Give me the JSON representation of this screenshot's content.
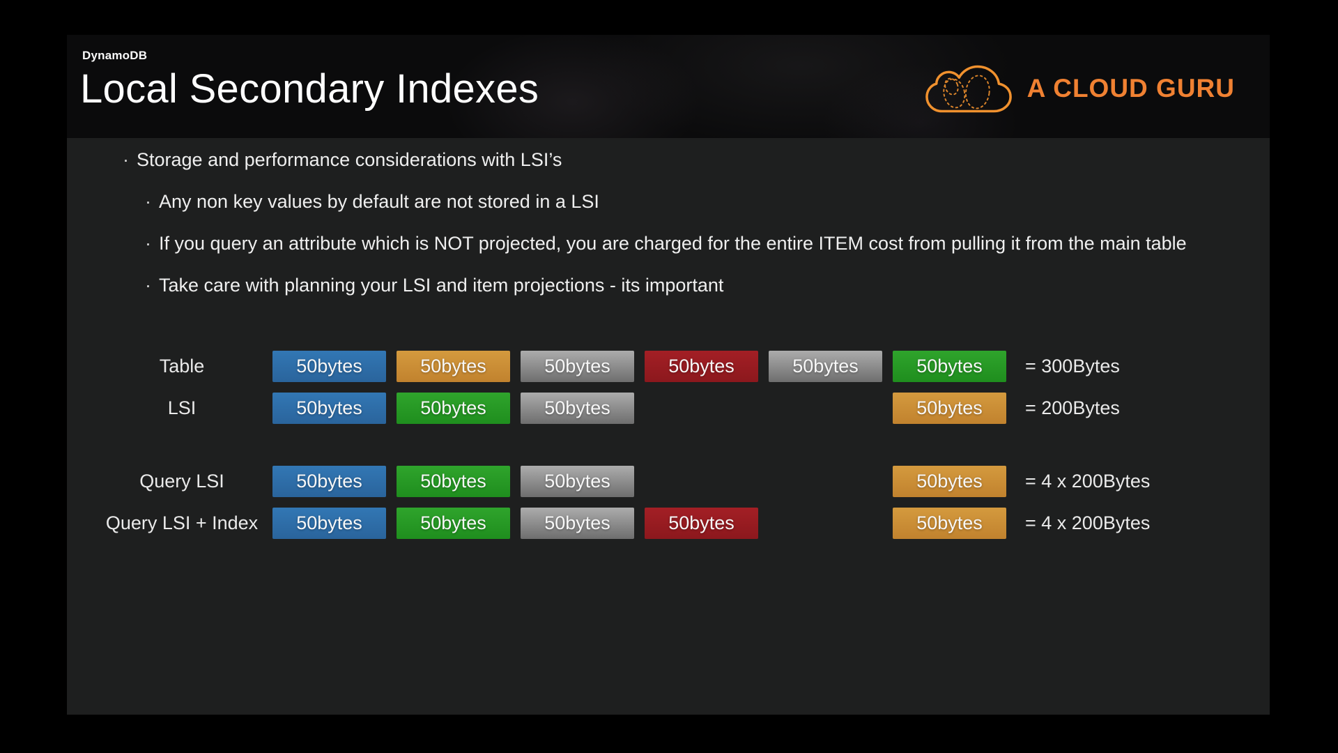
{
  "colors": {
    "page_background": "#000000",
    "slide_body": "#1E1F1F",
    "slide_header": "#0B0B0C",
    "accent_orange": "#F08132",
    "body_text": "#EFEFEF"
  },
  "slide": {
    "kicker": "DynamoDB",
    "title": "Local Secondary Indexes",
    "logo": {
      "text": "A CLOUD GURU",
      "color": "#F08132"
    },
    "bullet_char": "·",
    "bullets": [
      {
        "level": 1,
        "text": "Storage and performance considerations with LSI’s"
      },
      {
        "level": 2,
        "text": "Any non key values by default are not stored in a LSI"
      },
      {
        "level": 2,
        "text": "If you query an attribute which is NOT projected, you are charged for the entire ITEM cost from pulling it from the main table"
      },
      {
        "level": 2,
        "text": "Take care with planning your LSI and item projections - its important"
      }
    ],
    "diagram": {
      "box_label": "50bytes",
      "colors": {
        "blue": {
          "top": "#3277B4",
          "bottom": "#2A649C"
        },
        "orange": {
          "top": "#D49A3E",
          "bottom": "#C1822E"
        },
        "gray": {
          "top": "#ACACAC",
          "bottom": "#6E6E6E"
        },
        "red": {
          "top": "#A31F25",
          "bottom": "#8C181D"
        },
        "green": {
          "top": "#2FA42C",
          "bottom": "#1F8E1E"
        }
      },
      "rows": [
        {
          "label": "Table",
          "cells": [
            "blue",
            "orange",
            "gray",
            "red",
            "gray",
            "green"
          ],
          "total": "= 300Bytes",
          "spacer_before": false
        },
        {
          "label": "LSI",
          "cells": [
            "blue",
            "green",
            "gray",
            null,
            null,
            "orange"
          ],
          "total": "= 200Bytes",
          "spacer_before": false
        },
        {
          "label": "Query LSI",
          "cells": [
            "blue",
            "green",
            "gray",
            null,
            null,
            "orange"
          ],
          "total": "= 4 x 200Bytes",
          "spacer_before": true
        },
        {
          "label": "Query LSI + Index",
          "cells": [
            "blue",
            "green",
            "gray",
            "red",
            null,
            "orange"
          ],
          "total": "= 4 x 200Bytes",
          "spacer_before": false
        }
      ]
    }
  }
}
